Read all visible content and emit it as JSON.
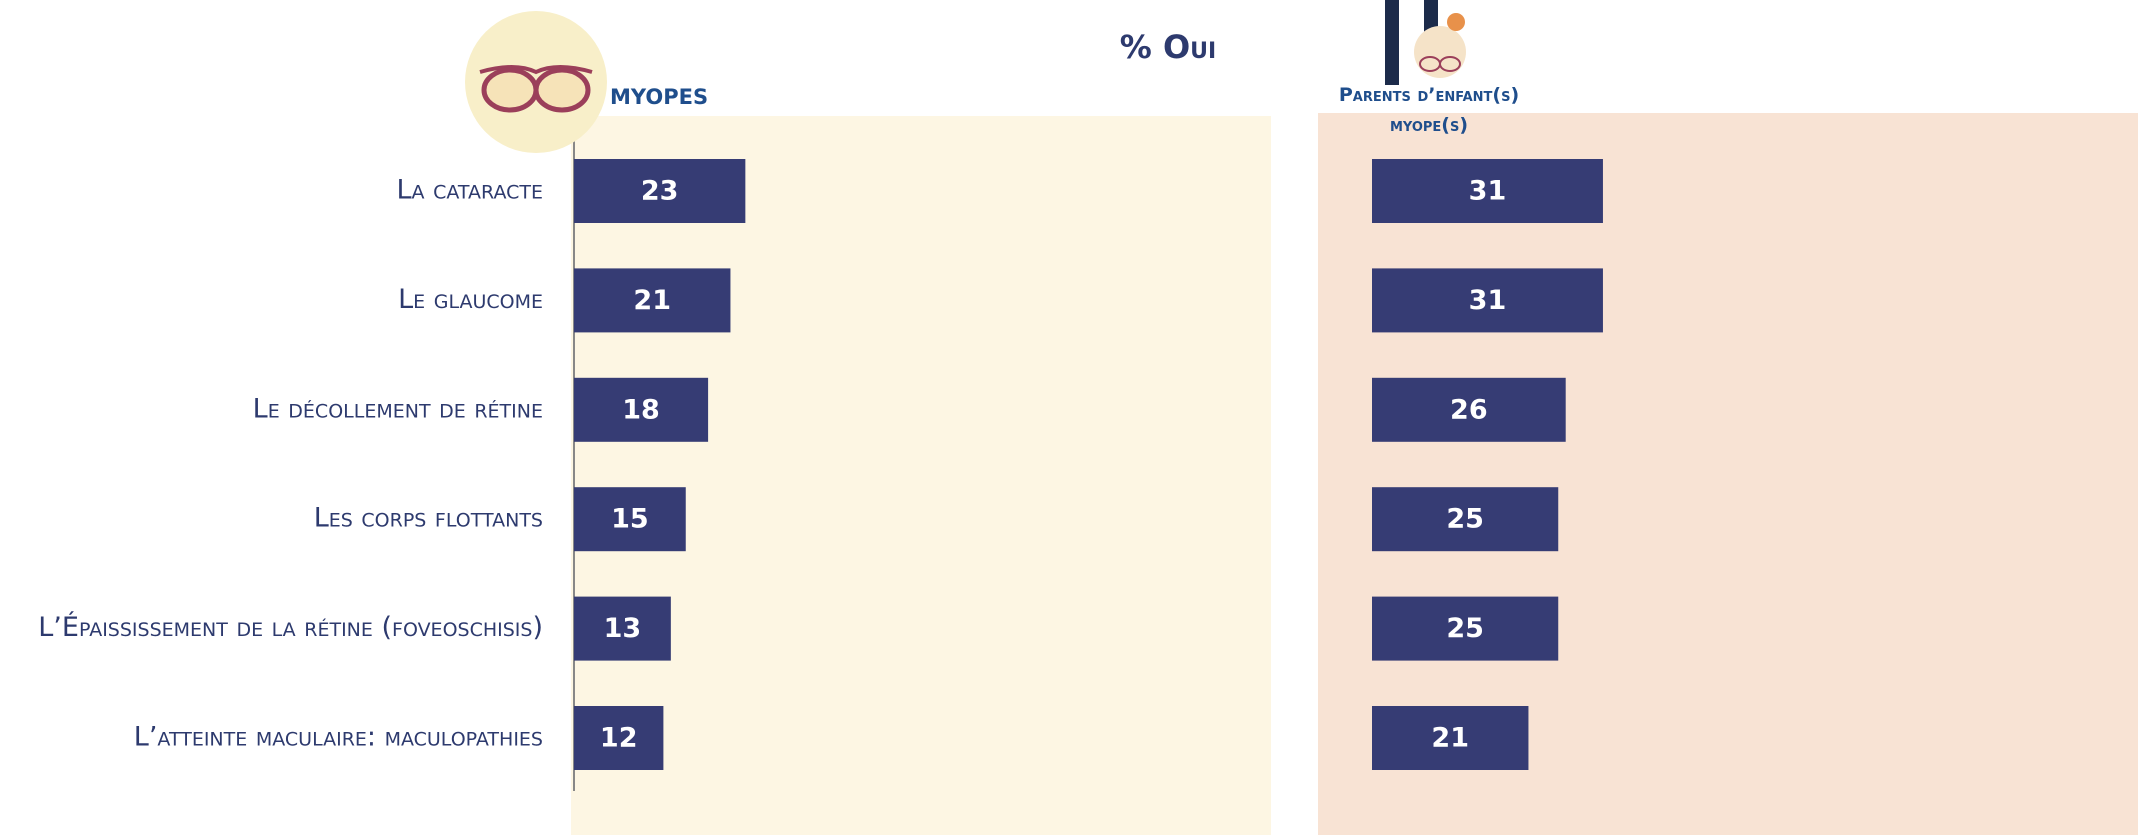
{
  "chart_data": {
    "type": "bar",
    "orientation": "horizontal",
    "title": "% Oui",
    "categories": [
      "La cataracte",
      "Le glaucome",
      "Le décollement de rétine",
      "Les corps flottants",
      "L’Épaississement de la rétine (foveoschisis)",
      "L’atteinte maculaire: maculopathies"
    ],
    "series": [
      {
        "name": "MYOPES",
        "color": "#363c74",
        "values": [
          23,
          21,
          18,
          15,
          13,
          12
        ]
      },
      {
        "name": "Parents d’enfant(s) myope(s)",
        "color": "#363c74",
        "values": [
          31,
          31,
          26,
          25,
          25,
          21
        ]
      }
    ]
  }
}
